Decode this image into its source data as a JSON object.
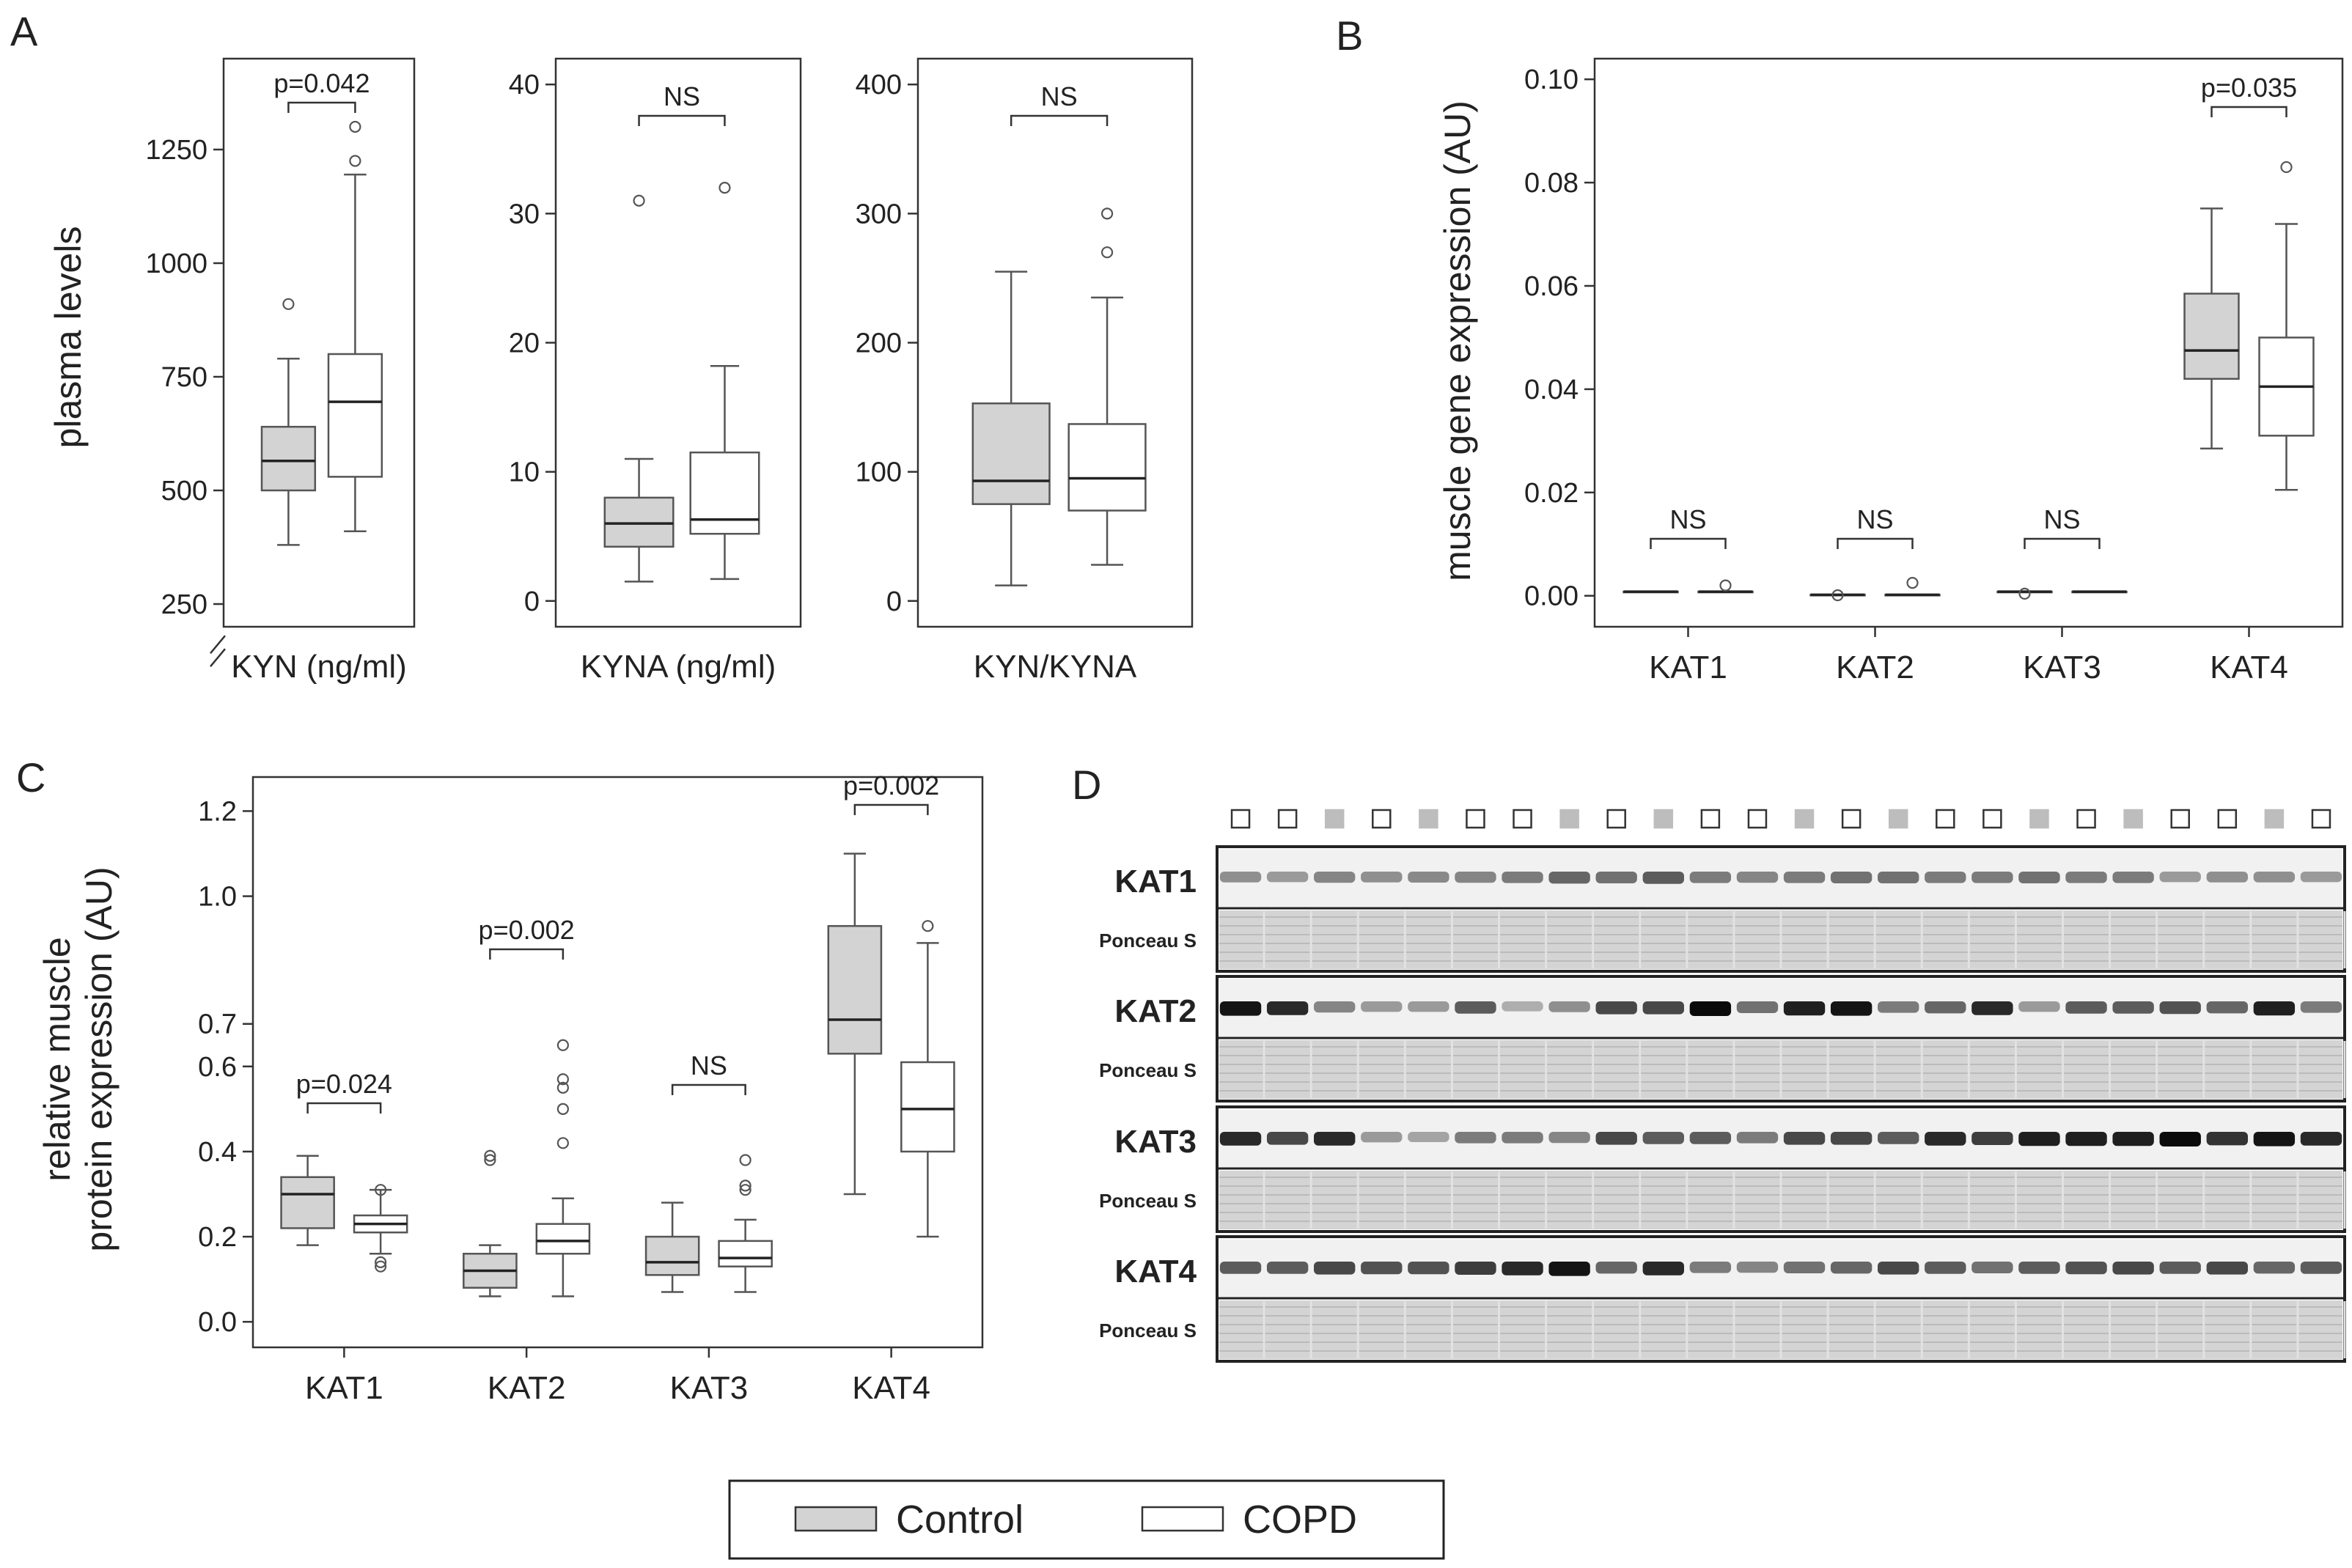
{
  "colors": {
    "control": "#d3d3d3",
    "copd": "#ffffff",
    "axis": "#333333",
    "box": "#555555"
  },
  "legend": {
    "control": "Control",
    "copd": "COPD"
  },
  "chart_data": [
    {
      "id": "A",
      "type": "box",
      "panel_label": "A",
      "ylabel": "plasma levels",
      "subplots": [
        {
          "xlabel": "KYN (ng/ml)",
          "ylim": [
            200,
            1450
          ],
          "yticks": [
            250,
            500,
            750,
            1000,
            1250
          ],
          "axis_break": true,
          "significance": "p=0.042",
          "groups": [
            {
              "name": "Control",
              "whislo": 380,
              "q1": 500,
              "med": 565,
              "q3": 640,
              "whishi": 790,
              "fliers": [
                910
              ]
            },
            {
              "name": "COPD",
              "whislo": 410,
              "q1": 530,
              "med": 695,
              "q3": 800,
              "whishi": 1195,
              "fliers": [
                1225,
                1300
              ]
            }
          ]
        },
        {
          "xlabel": "KYNA (ng/ml)",
          "ylim": [
            -2,
            42
          ],
          "yticks": [
            0,
            10,
            20,
            30,
            40
          ],
          "significance": "NS",
          "groups": [
            {
              "name": "Control",
              "whislo": 1.5,
              "q1": 4.2,
              "med": 6,
              "q3": 8,
              "whishi": 11,
              "fliers": [
                31
              ]
            },
            {
              "name": "COPD",
              "whislo": 1.7,
              "q1": 5.2,
              "med": 6.3,
              "q3": 11.5,
              "whishi": 18.2,
              "fliers": [
                32
              ]
            }
          ]
        },
        {
          "xlabel": "KYN/KYNA",
          "ylim": [
            -20,
            420
          ],
          "yticks": [
            0,
            100,
            200,
            300,
            400
          ],
          "significance": "NS",
          "groups": [
            {
              "name": "Control",
              "whislo": 12,
              "q1": 75,
              "med": 93,
              "q3": 153,
              "whishi": 255,
              "fliers": []
            },
            {
              "name": "COPD",
              "whislo": 28,
              "q1": 70,
              "med": 95,
              "q3": 137,
              "whishi": 235,
              "fliers": [
                270,
                300
              ]
            }
          ]
        }
      ]
    },
    {
      "id": "B",
      "type": "box",
      "panel_label": "B",
      "ylabel": "muscle gene expression (AU)",
      "ylim": [
        -0.006,
        0.104
      ],
      "yticks": [
        "0.00",
        "0.02",
        "0.04",
        "0.06",
        "0.08",
        "0.10"
      ],
      "categories": [
        "KAT1",
        "KAT2",
        "KAT3",
        "KAT4"
      ],
      "significance": [
        "NS",
        "NS",
        "NS",
        "p=0.035"
      ],
      "series": [
        {
          "name": "Control",
          "boxes": [
            {
              "whislo": 0.0008,
              "q1": 0.0008,
              "med": 0.0008,
              "q3": 0.0008,
              "whishi": 0.0008,
              "fliers": []
            },
            {
              "whislo": 0.0002,
              "q1": 0.0002,
              "med": 0.0002,
              "q3": 0.0002,
              "whishi": 0.0002,
              "fliers": [
                0.0001
              ]
            },
            {
              "whislo": 0.0008,
              "q1": 0.0008,
              "med": 0.0008,
              "q3": 0.0008,
              "whishi": 0.0008,
              "fliers": [
                0.0004
              ]
            },
            {
              "whislo": 0.0285,
              "q1": 0.042,
              "med": 0.0475,
              "q3": 0.0585,
              "whishi": 0.075,
              "fliers": []
            }
          ]
        },
        {
          "name": "COPD",
          "boxes": [
            {
              "whislo": 0.0008,
              "q1": 0.0008,
              "med": 0.0008,
              "q3": 0.0008,
              "whishi": 0.0008,
              "fliers": [
                0.002
              ]
            },
            {
              "whislo": 0.0002,
              "q1": 0.0002,
              "med": 0.0002,
              "q3": 0.0002,
              "whishi": 0.0002,
              "fliers": [
                0.0025
              ]
            },
            {
              "whislo": 0.0008,
              "q1": 0.0008,
              "med": 0.0008,
              "q3": 0.0008,
              "whishi": 0.0008,
              "fliers": []
            },
            {
              "whislo": 0.0205,
              "q1": 0.031,
              "med": 0.0405,
              "q3": 0.05,
              "whishi": 0.072,
              "fliers": [
                0.083
              ]
            }
          ]
        }
      ]
    },
    {
      "id": "C",
      "type": "box",
      "panel_label": "C",
      "ylabel": [
        "relative muscle",
        "protein expression (AU)"
      ],
      "ylim": [
        -0.06,
        1.28
      ],
      "yticks": [
        "0.0",
        "0.2",
        "0.4",
        "0.6",
        "0.7",
        "1.0",
        "1.2"
      ],
      "categories": [
        "KAT1",
        "KAT2",
        "KAT3",
        "KAT4"
      ],
      "significance": [
        "p=0.024",
        "p=0.002",
        "NS",
        "p=0.002"
      ],
      "series": [
        {
          "name": "Control",
          "boxes": [
            {
              "whislo": 0.18,
              "q1": 0.22,
              "med": 0.3,
              "q3": 0.34,
              "whishi": 0.39,
              "fliers": []
            },
            {
              "whislo": 0.06,
              "q1": 0.08,
              "med": 0.12,
              "q3": 0.16,
              "whishi": 0.18,
              "fliers": [
                0.38,
                0.39
              ]
            },
            {
              "whislo": 0.07,
              "q1": 0.11,
              "med": 0.14,
              "q3": 0.2,
              "whishi": 0.28,
              "fliers": []
            },
            {
              "whislo": 0.3,
              "q1": 0.63,
              "med": 0.71,
              "q3": 0.93,
              "whishi": 1.1,
              "fliers": []
            }
          ]
        },
        {
          "name": "COPD",
          "boxes": [
            {
              "whislo": 0.16,
              "q1": 0.21,
              "med": 0.23,
              "q3": 0.25,
              "whishi": 0.31,
              "fliers": [
                0.13,
                0.14,
                0.31
              ]
            },
            {
              "whislo": 0.06,
              "q1": 0.16,
              "med": 0.19,
              "q3": 0.23,
              "whishi": 0.29,
              "fliers": [
                0.42,
                0.5,
                0.55,
                0.57,
                0.65
              ]
            },
            {
              "whislo": 0.07,
              "q1": 0.13,
              "med": 0.15,
              "q3": 0.19,
              "whishi": 0.24,
              "fliers": [
                0.31,
                0.32,
                0.38
              ]
            },
            {
              "whislo": 0.2,
              "q1": 0.4,
              "med": 0.5,
              "q3": 0.61,
              "whishi": 0.89,
              "fliers": [
                0.93
              ]
            }
          ]
        }
      ]
    }
  ],
  "blot": {
    "panel_label": "D",
    "lane_groups": [
      "copd",
      "copd",
      "control",
      "copd",
      "control",
      "copd",
      "copd",
      "control",
      "copd",
      "control",
      "copd",
      "copd",
      "control",
      "copd",
      "control",
      "copd",
      "copd",
      "control",
      "copd",
      "control",
      "copd",
      "copd",
      "control",
      "copd"
    ],
    "rows": [
      {
        "label": "KAT1",
        "loading": "Ponceau S",
        "intensity": [
          0.35,
          0.3,
          0.4,
          0.35,
          0.38,
          0.4,
          0.45,
          0.55,
          0.5,
          0.6,
          0.45,
          0.4,
          0.45,
          0.5,
          0.5,
          0.45,
          0.45,
          0.5,
          0.45,
          0.45,
          0.3,
          0.35,
          0.35,
          0.3
        ]
      },
      {
        "label": "KAT2",
        "loading": "Ponceau S",
        "intensity": [
          0.95,
          0.85,
          0.4,
          0.3,
          0.3,
          0.6,
          0.2,
          0.35,
          0.7,
          0.7,
          1.0,
          0.5,
          0.9,
          0.95,
          0.45,
          0.55,
          0.85,
          0.3,
          0.6,
          0.6,
          0.65,
          0.55,
          0.9,
          0.45
        ]
      },
      {
        "label": "KAT3",
        "loading": "Ponceau S",
        "intensity": [
          0.85,
          0.7,
          0.85,
          0.3,
          0.25,
          0.45,
          0.45,
          0.4,
          0.7,
          0.6,
          0.6,
          0.45,
          0.7,
          0.7,
          0.6,
          0.85,
          0.75,
          0.9,
          0.9,
          0.9,
          1.0,
          0.8,
          0.95,
          0.85
        ]
      },
      {
        "label": "KAT4",
        "loading": "Ponceau S",
        "intensity": [
          0.6,
          0.6,
          0.7,
          0.65,
          0.65,
          0.75,
          0.85,
          0.95,
          0.55,
          0.85,
          0.45,
          0.4,
          0.5,
          0.55,
          0.7,
          0.6,
          0.5,
          0.6,
          0.65,
          0.7,
          0.6,
          0.7,
          0.55,
          0.6
        ]
      }
    ]
  }
}
